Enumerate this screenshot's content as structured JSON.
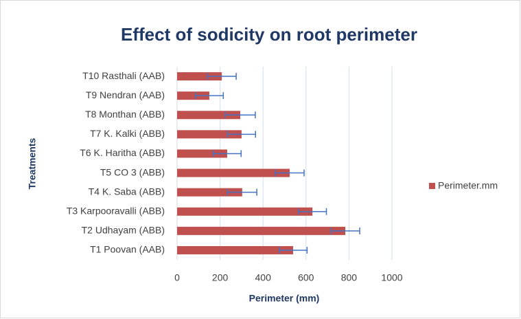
{
  "chart_data": {
    "type": "bar",
    "orientation": "horizontal",
    "title": "Effect of sodicity on root perimeter",
    "x_label": "Perimeter (mm)",
    "y_label": "Treatments",
    "categories": [
      "T1 Poovan (AAB)",
      "T2 Udhayam (ABB)",
      "T3 Karpooravalli (ABB)",
      "T4 K. Saba (ABB)",
      "T5 CO 3 (ABB)",
      "T6 K. Haritha (ABB)",
      "T7  K. Kalki (ABB)",
      "T8 Monthan (ABB)",
      "T9 Nendran (AAB)",
      "T10 Rasthali (AAB)"
    ],
    "series": [
      {
        "name": "Perimeter.mm",
        "color": "#c0504d",
        "error_color": "#4472c4",
        "values": [
          540,
          783,
          630,
          303,
          524,
          233,
          300,
          294,
          150,
          208
        ],
        "errors": [
          65,
          67,
          65,
          68,
          67,
          65,
          65,
          70,
          65,
          67
        ]
      }
    ],
    "xlim": [
      0,
      1000
    ],
    "xticks": [
      0,
      200,
      400,
      600,
      800,
      1000
    ],
    "grid": true,
    "legend": "right"
  }
}
